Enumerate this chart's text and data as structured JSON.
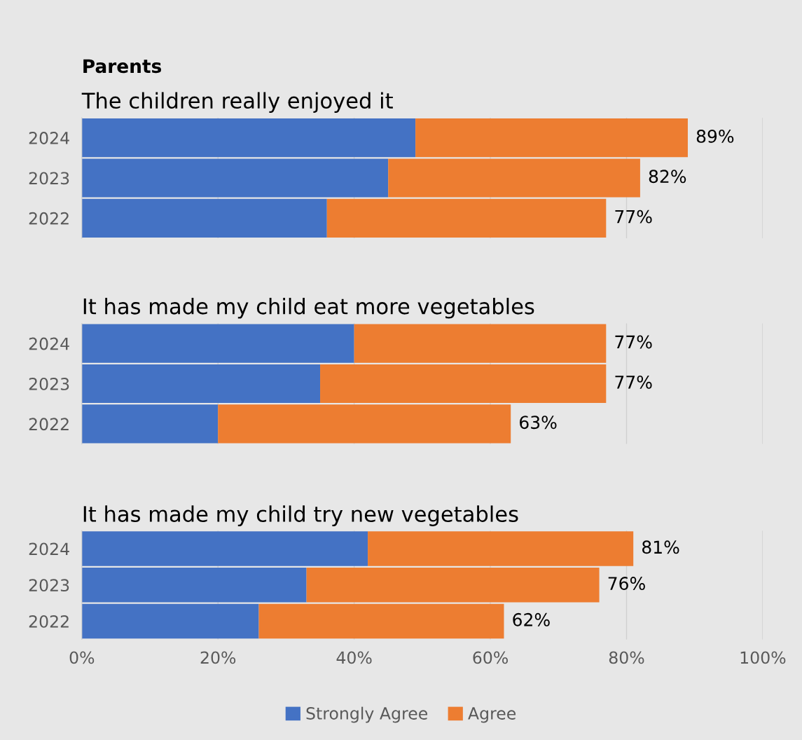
{
  "chart_data": [
    {
      "type": "bar",
      "orientation": "horizontal",
      "stacked": true,
      "title": "Parents",
      "subtitle": "The children really enjoyed it",
      "categories": [
        "2024",
        "2023",
        "2022"
      ],
      "series": [
        {
          "name": "Strongly Agree",
          "color": "#4472c4",
          "values": [
            49,
            45,
            36
          ]
        },
        {
          "name": "Agree",
          "color": "#ed7d31",
          "values": [
            40,
            37,
            41
          ]
        }
      ],
      "totals": [
        "89%",
        "82%",
        "77%"
      ],
      "xlim": [
        0,
        100
      ],
      "xticks": [
        {
          "value": 0,
          "label": null
        },
        {
          "value": 20,
          "label": null
        },
        {
          "value": 40,
          "label": null
        },
        {
          "value": 60,
          "label": null
        },
        {
          "value": 80,
          "label": null
        },
        {
          "value": 100,
          "label": null
        }
      ],
      "grid": "x",
      "tick_labels": "y",
      "legend": "bottom"
    },
    {
      "type": "bar",
      "orientation": "horizontal",
      "stacked": true,
      "title": "It has made my child eat more vegetables",
      "categories": [
        "2024",
        "2023",
        "2022"
      ],
      "series": [
        {
          "color": "#4472c4",
          "values": [
            40,
            35,
            20
          ]
        },
        {
          "color": "#ed7d31",
          "values": [
            37,
            42,
            43
          ]
        }
      ],
      "totals": [
        "77%",
        "77%",
        "63%"
      ],
      "xlim": [
        0,
        100
      ],
      "xticks": [
        {
          "value": 0,
          "label": null
        },
        {
          "value": 20,
          "label": null
        },
        {
          "value": 40,
          "label": null
        },
        {
          "value": 60,
          "label": null
        },
        {
          "value": 80,
          "label": null
        },
        {
          "value": 100,
          "label": null
        }
      ],
      "grid": "x",
      "tick_labels": "y"
    },
    {
      "type": "bar",
      "orientation": "horizontal",
      "stacked": true,
      "title": "It has made my child try new vegetables",
      "categories": [
        "2024",
        "2023",
        "2022"
      ],
      "series": [
        {
          "color": "#4472c4",
          "values": [
            42,
            33,
            26
          ]
        },
        {
          "color": "#ed7d31",
          "values": [
            39,
            43,
            36
          ]
        }
      ],
      "totals": [
        "81%",
        "76%",
        "62%"
      ],
      "xlim": [
        0,
        100
      ],
      "xticks": [
        {
          "value": 0,
          "label": "0%"
        },
        {
          "value": 20,
          "label": "20%"
        },
        {
          "value": 40,
          "label": "40%"
        },
        {
          "value": 60,
          "label": "60%"
        },
        {
          "value": 80,
          "label": "80%"
        },
        {
          "value": 100,
          "label": "100%"
        }
      ],
      "grid": "x"
    }
  ]
}
